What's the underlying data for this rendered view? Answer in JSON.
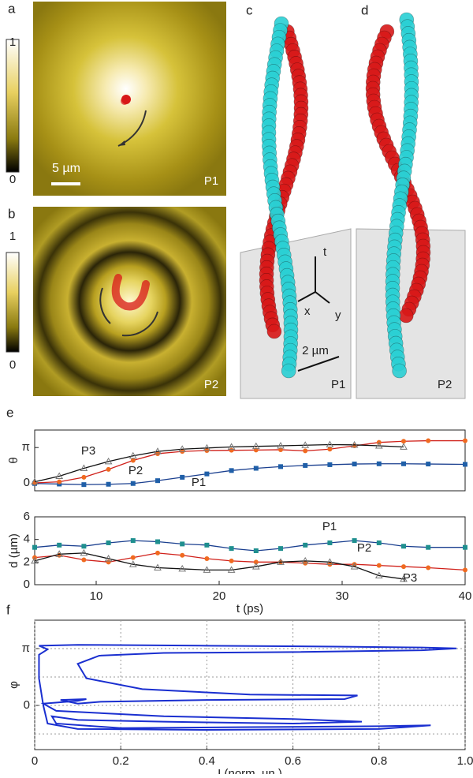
{
  "panels": {
    "a": {
      "label": "a",
      "colorbar": [
        "1",
        "0"
      ],
      "scale": "5 µm",
      "tag": "P1"
    },
    "b": {
      "label": "b",
      "colorbar": [
        "1",
        "0"
      ],
      "tag": "P2"
    },
    "c": {
      "label": "c",
      "axes": [
        "t",
        "x",
        "y"
      ],
      "scale": "2 µm",
      "tag": "P1"
    },
    "d": {
      "label": "d",
      "tag": "P2"
    },
    "e": {
      "label": "e"
    },
    "f": {
      "label": "f"
    }
  },
  "chart_data": [
    {
      "type": "line",
      "ylabel": "θ",
      "x": [
        5,
        7,
        9,
        11,
        13,
        15,
        17,
        19,
        21,
        23,
        25,
        27,
        29,
        31,
        33,
        35,
        37,
        40
      ],
      "xlim": [
        5,
        40
      ],
      "ylim": [
        -0.7,
        4.7
      ],
      "yticks": [
        0,
        {
          "value": 3.14159,
          "label": "π"
        }
      ],
      "series": [
        {
          "name": "P1",
          "color": "#1f5fa8",
          "marker": "square",
          "line_color": "#1a3f8f",
          "values": [
            -0.05,
            -0.1,
            -0.15,
            -0.12,
            -0.05,
            0.2,
            0.5,
            0.8,
            1.1,
            1.3,
            1.45,
            1.55,
            1.62,
            1.68,
            1.7,
            1.7,
            1.68,
            1.65
          ]
        },
        {
          "name": "P2",
          "color": "#f06a20",
          "marker": "circle",
          "line_color": "#d0201a",
          "values": [
            0,
            0.1,
            0.5,
            1.2,
            2.0,
            2.6,
            2.8,
            2.88,
            2.9,
            2.92,
            2.95,
            2.85,
            3.0,
            3.3,
            3.6,
            3.7,
            3.75,
            3.75
          ]
        },
        {
          "name": "P3",
          "color": "#777777",
          "marker": "triangle",
          "line_color": "#111111",
          "values": [
            0.1,
            0.6,
            1.3,
            1.9,
            2.4,
            2.8,
            3.0,
            3.1,
            3.2,
            3.25,
            3.3,
            3.35,
            3.4,
            3.38,
            3.3,
            3.2,
            null,
            null
          ]
        }
      ]
    },
    {
      "type": "line",
      "ylabel": "d (µm)",
      "xlabel": "t (ps)",
      "x": [
        5,
        7,
        9,
        11,
        13,
        15,
        17,
        19,
        21,
        23,
        25,
        27,
        29,
        31,
        33,
        35,
        37,
        40
      ],
      "xlim": [
        5,
        40
      ],
      "ylim": [
        0,
        6
      ],
      "xticks": [
        10,
        20,
        30,
        40
      ],
      "yticks": [
        0,
        2,
        4,
        6
      ],
      "series": [
        {
          "name": "P1",
          "color": "#1f8f8f",
          "marker": "square",
          "line_color": "#1a3f8f",
          "values": [
            3.3,
            3.5,
            3.4,
            3.7,
            3.9,
            3.8,
            3.6,
            3.5,
            3.2,
            3.0,
            3.2,
            3.5,
            3.7,
            3.9,
            3.7,
            3.4,
            3.3,
            3.3
          ]
        },
        {
          "name": "P2",
          "color": "#f06a20",
          "marker": "circle",
          "line_color": "#d0201a",
          "values": [
            2.4,
            2.6,
            2.2,
            2.0,
            2.4,
            2.8,
            2.6,
            2.3,
            2.1,
            2.0,
            2.0,
            1.9,
            1.8,
            1.8,
            1.7,
            1.6,
            1.5,
            1.3
          ]
        },
        {
          "name": "P3",
          "color": "#777777",
          "marker": "triangle",
          "line_color": "#111111",
          "values": [
            2.1,
            2.7,
            2.8,
            2.3,
            1.8,
            1.5,
            1.4,
            1.3,
            1.3,
            1.6,
            2.0,
            2.1,
            2.0,
            1.6,
            0.8,
            0.5,
            null,
            null
          ]
        }
      ]
    },
    {
      "type": "path",
      "ylabel": "φ",
      "xlabel": "I (norm. un.)",
      "xlim": [
        0,
        1
      ],
      "ylim": [
        -2.44,
        4.71
      ],
      "xticks": [
        0,
        0.2,
        0.4,
        0.6,
        0.8,
        {
          "value": 1,
          "label": "1.0"
        }
      ],
      "yticks": [
        0,
        {
          "value": 3.14159,
          "label": "π"
        }
      ],
      "yminor": [
        -1.5708,
        1.5708
      ],
      "grid": true,
      "series": [
        {
          "color": "#1a2fd0",
          "x": [
            0.01,
            0.1,
            0.4,
            0.7,
            0.9,
            0.98,
            0.9,
            0.6,
            0.3,
            0.15,
            0.1,
            0.12,
            0.25,
            0.5,
            0.75,
            0.72,
            0.4,
            0.15,
            0.1,
            0.06,
            0.12,
            0.1,
            0.02,
            0.05,
            0.3,
            0.6,
            0.76,
            0.6,
            0.3,
            0.1,
            0.04,
            0.05,
            0.2,
            0.5,
            0.8,
            0.92,
            0.8,
            0.4,
            0.1,
            0.03,
            0.02,
            0.01,
            0.01,
            0.03,
            0.01
          ],
          "values": [
            3.3,
            3.35,
            3.3,
            3.25,
            3.2,
            3.15,
            3.05,
            2.95,
            2.9,
            2.75,
            2.3,
            1.5,
            0.9,
            0.6,
            0.55,
            0.35,
            0.3,
            0.2,
            0.1,
            0.3,
            0.35,
            0.25,
            0.1,
            -0.3,
            -0.6,
            -0.75,
            -0.9,
            -1.0,
            -0.9,
            -0.8,
            -0.6,
            -1.0,
            -1.25,
            -1.2,
            -1.15,
            -1.1,
            -1.3,
            -1.35,
            -1.3,
            -1.0,
            0,
            1.5,
            2.8,
            3.1,
            3.3
          ]
        }
      ]
    }
  ]
}
